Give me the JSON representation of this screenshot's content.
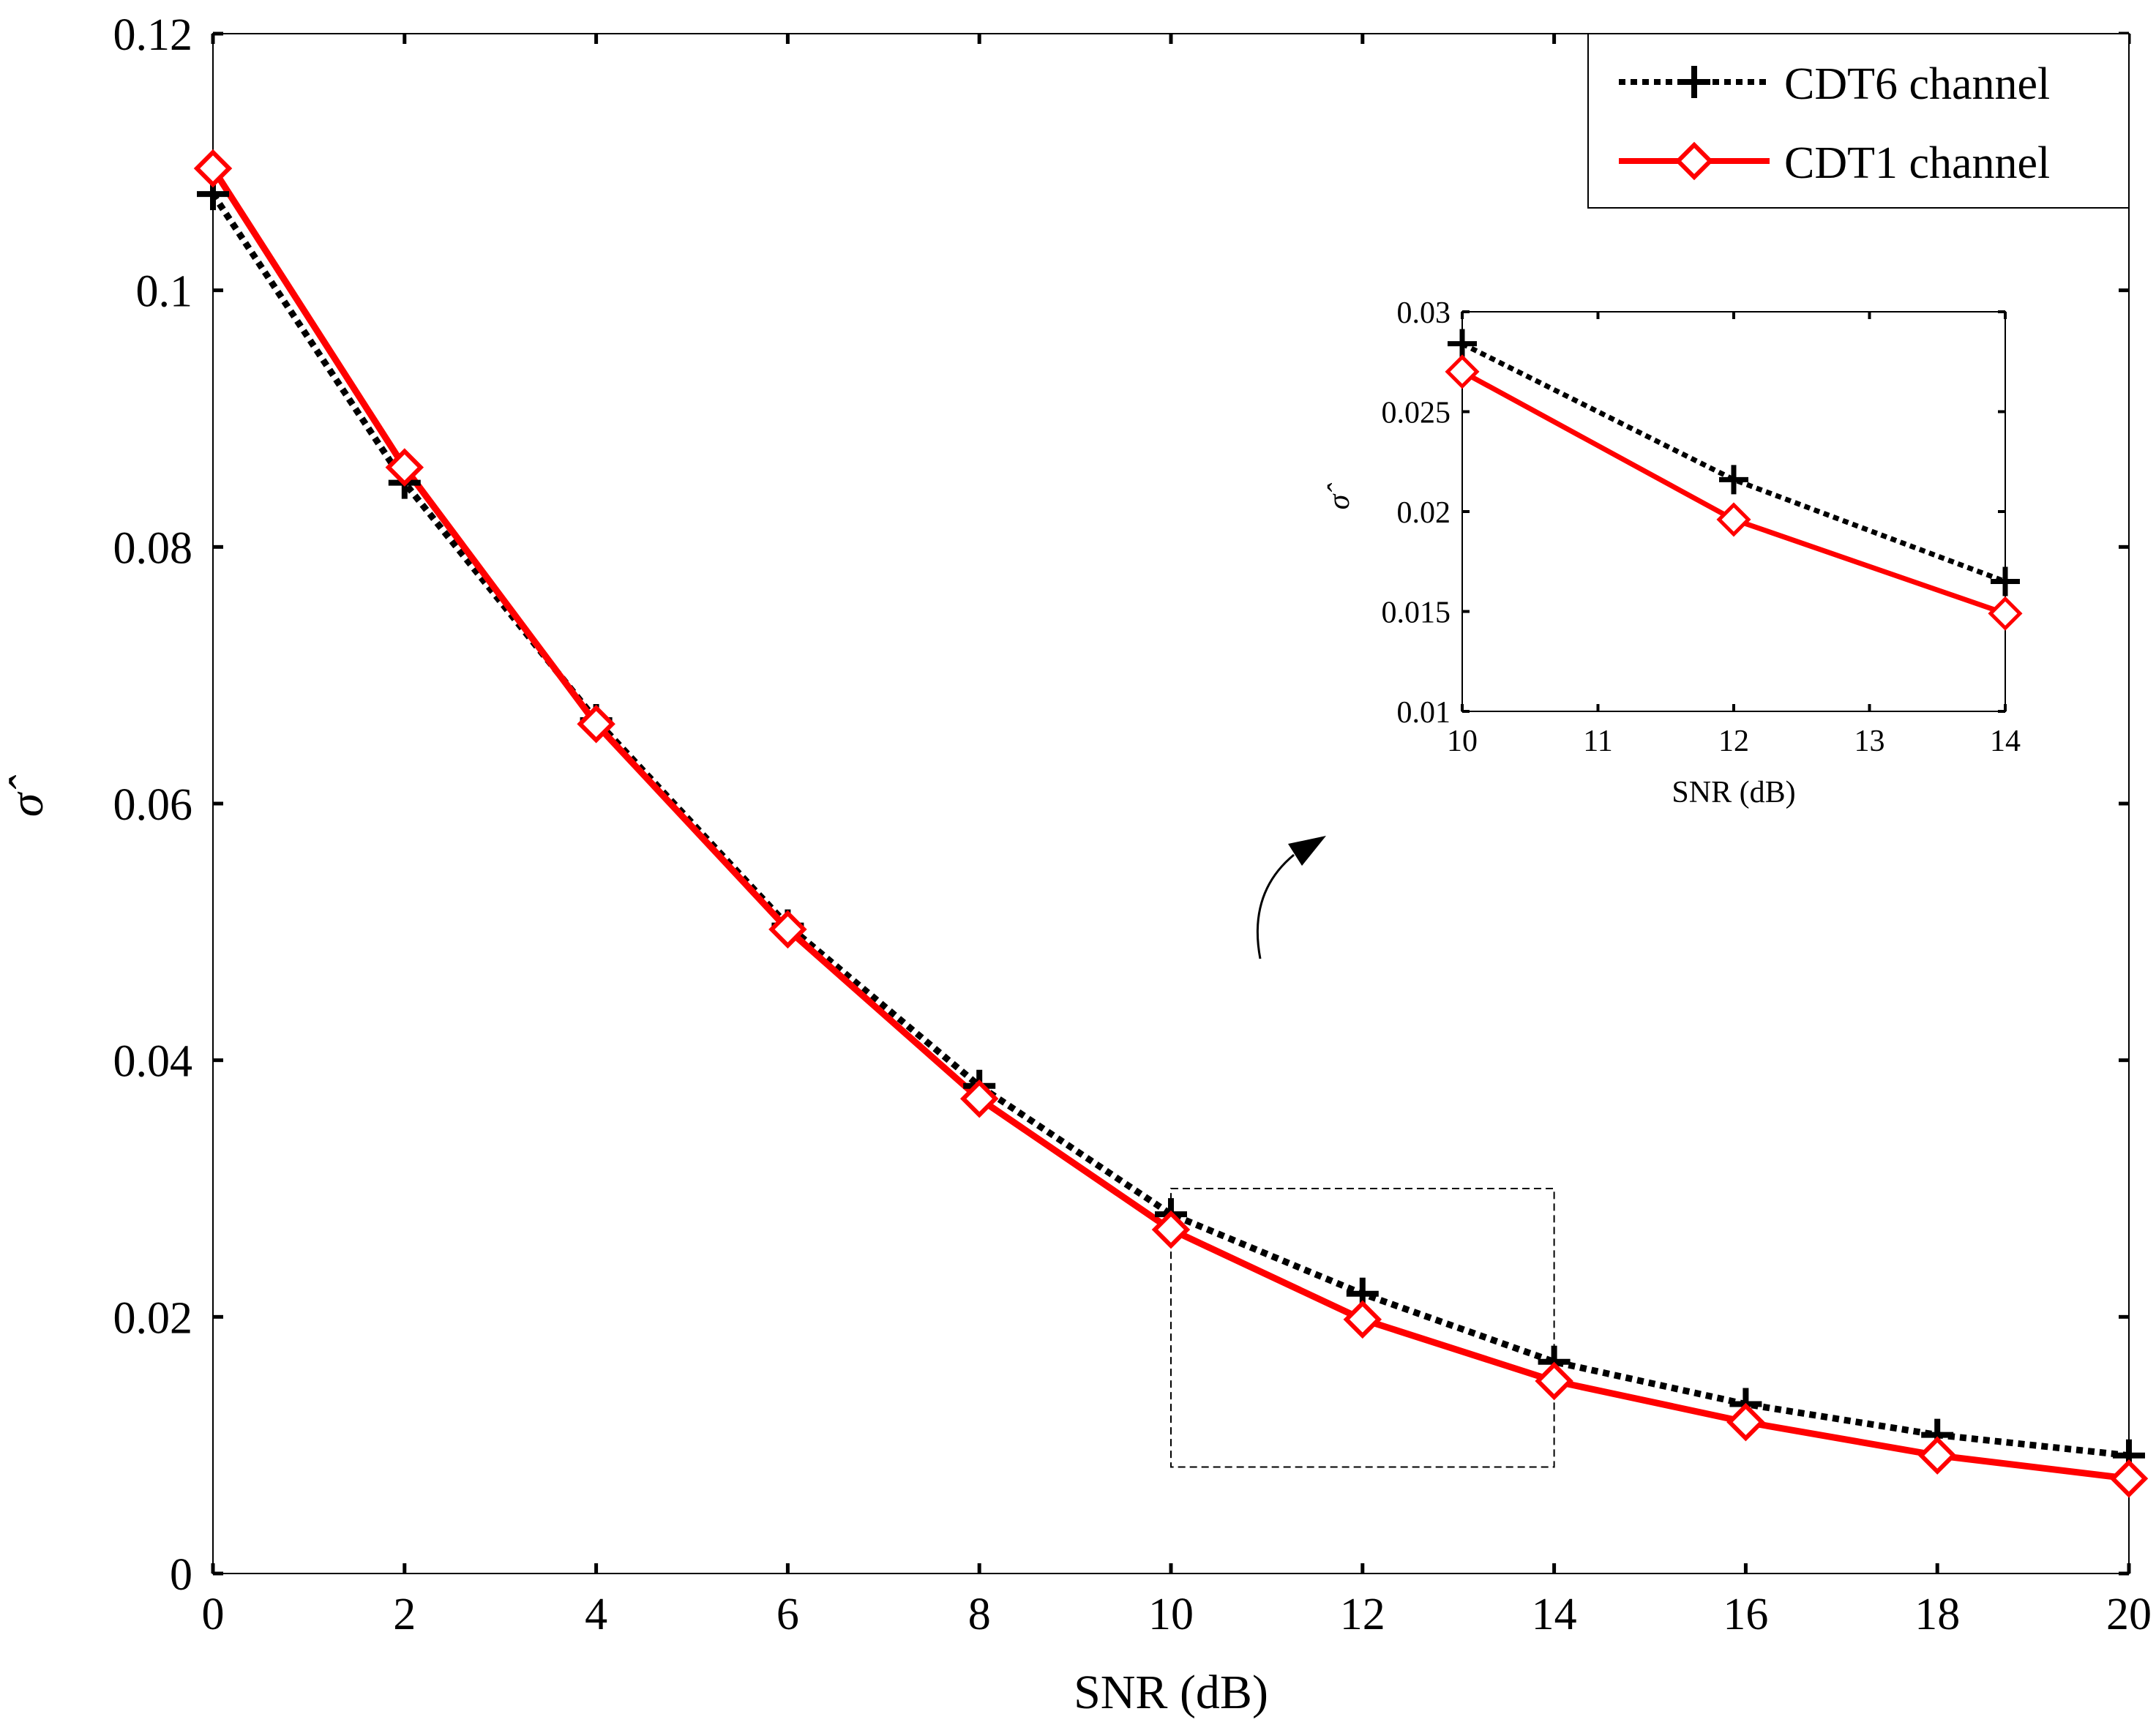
{
  "colors": {
    "cdt6": "#000000",
    "cdt1": "#ff0000",
    "axes": "#000000",
    "background": "#ffffff"
  },
  "chart_data": [
    {
      "type": "line",
      "title": "",
      "xlabel": "SNR (dB)",
      "ylabel": "σ̂",
      "xlim": [
        0,
        20
      ],
      "ylim": [
        0,
        0.12
      ],
      "xticks": [
        0,
        2,
        4,
        6,
        8,
        10,
        12,
        14,
        16,
        18,
        20
      ],
      "xtick_labels": [
        "0",
        "2",
        "4",
        "6",
        "8",
        "10",
        "12",
        "14",
        "16",
        "18",
        "20"
      ],
      "yticks": [
        0,
        0.02,
        0.04,
        0.06,
        0.08,
        0.1,
        0.12
      ],
      "ytick_labels": [
        "0",
        "0.02",
        "0.04",
        "0.06",
        "0.08",
        "0.1",
        "0.12"
      ],
      "legend_position": "top-right",
      "x": [
        0,
        2,
        4,
        6,
        8,
        10,
        12,
        14,
        16,
        18,
        20
      ],
      "series": [
        {
          "name": "CDT6 channel",
          "values": [
            0.1075,
            0.085,
            0.0665,
            0.0505,
            0.038,
            0.028,
            0.0218,
            0.0165,
            0.0132,
            0.0108,
            0.0092
          ],
          "style": "dotted",
          "marker": "plus"
        },
        {
          "name": "CDT1 channel",
          "values": [
            0.1095,
            0.0862,
            0.0662,
            0.0502,
            0.037,
            0.0268,
            0.0198,
            0.015,
            0.0118,
            0.0092,
            0.0074
          ],
          "style": "solid",
          "marker": "diamond"
        }
      ],
      "zoom_box": {
        "xrange": [
          10,
          14
        ],
        "yrange": [
          0.0083,
          0.03
        ]
      }
    },
    {
      "type": "line",
      "title": "",
      "xlabel": "SNR (dB)",
      "ylabel": "σ̂",
      "xlim": [
        10,
        14
      ],
      "ylim": [
        0.01,
        0.03
      ],
      "xticks": [
        10,
        11,
        12,
        13,
        14
      ],
      "xtick_labels": [
        "10",
        "11",
        "12",
        "13",
        "14"
      ],
      "yticks": [
        0.01,
        0.015,
        0.02,
        0.025,
        0.03
      ],
      "ytick_labels": [
        "0.01",
        "0.015",
        "0.02",
        "0.025",
        "0.03"
      ],
      "x": [
        10,
        12,
        14
      ],
      "series": [
        {
          "name": "CDT6 channel",
          "values": [
            0.0284,
            0.0216,
            0.0165
          ],
          "style": "dotted",
          "marker": "plus"
        },
        {
          "name": "CDT1 channel",
          "values": [
            0.027,
            0.0196,
            0.0149
          ],
          "style": "solid",
          "marker": "diamond"
        }
      ]
    }
  ]
}
